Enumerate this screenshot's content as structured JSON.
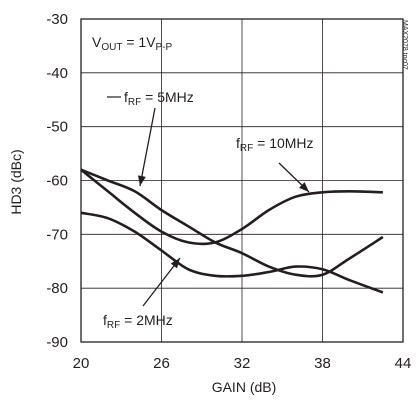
{
  "chart_data": {
    "type": "line",
    "xlabel": "GAIN (dB)",
    "ylabel": "HD3 (dBc)",
    "xlim": [
      20,
      44
    ],
    "ylim": [
      -90,
      -30
    ],
    "xticks": [
      20,
      26,
      32,
      38,
      44
    ],
    "yticks": [
      -30,
      -40,
      -50,
      -60,
      -70,
      -80,
      -90
    ],
    "grid": true,
    "legend": "none",
    "annotations": {
      "vout": {
        "main": "V",
        "sub": "OUT",
        "rest": " = 1V",
        "sub2": "P-P"
      },
      "f5": {
        "main": "f",
        "sub": "RF",
        "rest": " = 5MHz"
      },
      "f10": {
        "main": "f",
        "sub": "RF",
        "rest": " = 10MHz"
      },
      "f2": {
        "main": "f",
        "sub": "RF",
        "rest": " = 2MHz"
      }
    },
    "watermark": "MAX2078 toc07",
    "series": [
      {
        "x": [
          20,
          22,
          24,
          26,
          28,
          30,
          32,
          34,
          36,
          38,
          40,
          42.5
        ],
        "y": [
          -58,
          -60,
          -62,
          -65.5,
          -68.5,
          -71.5,
          -73.5,
          -76,
          -77.5,
          -77.5,
          -74.5,
          -70.5
        ]
      },
      {
        "x": [
          20,
          22,
          24,
          26,
          28,
          30,
          32,
          34,
          36,
          38,
          40,
          42.5
        ],
        "y": [
          -58,
          -62,
          -66,
          -69.5,
          -71.5,
          -71.5,
          -69,
          -65.5,
          -63,
          -62.2,
          -62,
          -62.2
        ]
      },
      {
        "x": [
          20,
          22,
          24,
          26,
          28,
          30,
          32,
          34,
          36,
          38,
          40,
          42.5
        ],
        "y": [
          -66,
          -67,
          -69.5,
          -73,
          -76.5,
          -77.7,
          -77.7,
          -77,
          -76,
          -76.5,
          -78.5,
          -80.8
        ]
      }
    ]
  }
}
